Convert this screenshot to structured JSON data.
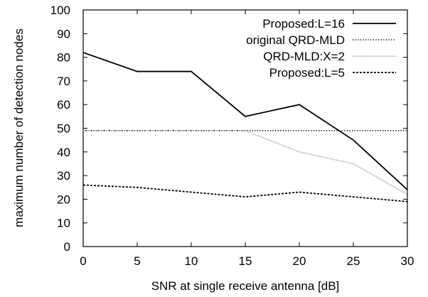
{
  "chart_data": {
    "type": "line",
    "title": "",
    "xlabel": "SNR at single receive antenna [dB]",
    "ylabel": "maximum number of detection nodes",
    "xlim": [
      0,
      30
    ],
    "ylim": [
      0,
      100
    ],
    "xticks": [
      0,
      5,
      10,
      15,
      20,
      25,
      30
    ],
    "yticks": [
      0,
      10,
      20,
      30,
      40,
      50,
      60,
      70,
      80,
      90,
      100
    ],
    "grid": false,
    "legend": "top-right",
    "series": [
      {
        "name": "Proposed:L=16",
        "style": "solid",
        "color": "#000000",
        "x": [
          0,
          5,
          10,
          15,
          20,
          25,
          30
        ],
        "y": [
          82,
          74,
          74,
          55,
          60,
          45,
          24
        ]
      },
      {
        "name": "original QRD-MLD",
        "style": "dotted",
        "color": "#000000",
        "x": [
          0,
          5,
          10,
          15,
          20,
          25,
          30
        ],
        "y": [
          49,
          49,
          49,
          49,
          49,
          49,
          49
        ]
      },
      {
        "name": "QRD-MLD:X=2",
        "style": "dotted-dense",
        "color": "#888888",
        "x": [
          0,
          5,
          10,
          15,
          20,
          25,
          30
        ],
        "y": [
          49,
          49,
          49,
          49,
          40,
          35,
          22
        ]
      },
      {
        "name": "Proposed:L=5",
        "style": "dashed",
        "color": "#000000",
        "x": [
          0,
          5,
          10,
          15,
          20,
          25,
          30
        ],
        "y": [
          26,
          25,
          23,
          21,
          23,
          21,
          19
        ]
      }
    ]
  }
}
